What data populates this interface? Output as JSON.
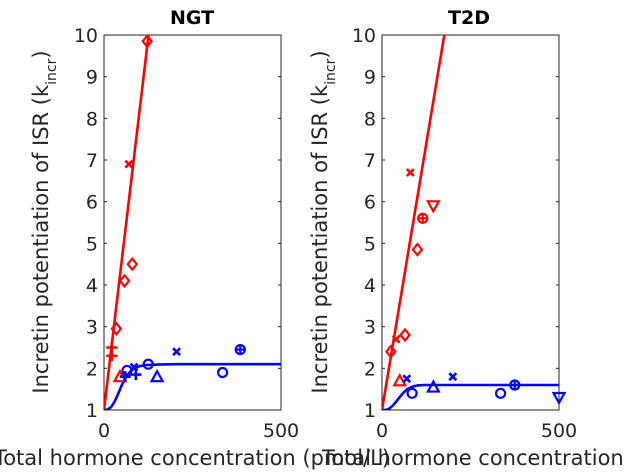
{
  "chart_data": [
    {
      "type": "scatter",
      "title": "NGT",
      "xlabel": "Total hormone concentration (pmol/L)",
      "ylabel": "Incretin potentiation of ISR (k",
      "ylabel_sub": "incr",
      "ylabel_end": ")",
      "xlim": [
        0,
        500
      ],
      "ylim": [
        1,
        10
      ],
      "xticks": [
        0,
        500
      ],
      "yticks": [
        1,
        2,
        3,
        4,
        5,
        6,
        7,
        8,
        9,
        10
      ],
      "grid": false,
      "series": [
        {
          "color": "#ff0000",
          "fit_line": {
            "x": [
              0,
              130
            ],
            "y": [
              1,
              10.3
            ]
          },
          "points": [
            {
              "x": 22,
              "y": 2.5,
              "marker": "plus"
            },
            {
              "x": 22,
              "y": 2.3,
              "marker": "plus"
            },
            {
              "x": 35,
              "y": 2.95,
              "marker": "diamond"
            },
            {
              "x": 45,
              "y": 1.8,
              "marker": "triangle"
            },
            {
              "x": 58,
              "y": 4.1,
              "marker": "diamond"
            },
            {
              "x": 70,
              "y": 6.9,
              "marker": "x"
            },
            {
              "x": 80,
              "y": 4.5,
              "marker": "diamond"
            },
            {
              "x": 122,
              "y": 9.85,
              "marker": "diamond"
            }
          ]
        },
        {
          "color": "#0000ff",
          "fit_line": {
            "x": [
              0,
              10,
              20,
              30,
              40,
              50,
              60,
              70,
              80,
              90,
              100,
              120,
              150,
              200,
              300,
              500
            ],
            "y": [
              1,
              1.01,
              1.07,
              1.2,
              1.39,
              1.59,
              1.76,
              1.88,
              1.97,
              2.02,
              2.05,
              2.08,
              2.09,
              2.1,
              2.1,
              2.1
            ]
          },
          "points": [
            {
              "x": 60,
              "y": 1.8,
              "marker": "plus"
            },
            {
              "x": 65,
              "y": 1.95,
              "marker": "circle"
            },
            {
              "x": 85,
              "y": 2.03,
              "marker": "x"
            },
            {
              "x": 90,
              "y": 1.85,
              "marker": "plus"
            },
            {
              "x": 125,
              "y": 2.1,
              "marker": "circle"
            },
            {
              "x": 150,
              "y": 1.8,
              "marker": "triangle"
            },
            {
              "x": 205,
              "y": 2.4,
              "marker": "x"
            },
            {
              "x": 335,
              "y": 1.9,
              "marker": "circle"
            },
            {
              "x": 385,
              "y": 2.45,
              "marker": "circle-plus"
            }
          ]
        }
      ]
    },
    {
      "type": "scatter",
      "title": "T2D",
      "xlabel": "Total hormone concentration (pmol/L)",
      "ylabel": "Incretin potentiation of ISR (k",
      "ylabel_sub": "incr",
      "ylabel_end": ")",
      "xlim": [
        0,
        500
      ],
      "ylim": [
        1,
        10
      ],
      "xticks": [
        0,
        500
      ],
      "yticks": [
        1,
        2,
        3,
        4,
        5,
        6,
        7,
        8,
        9,
        10
      ],
      "grid": false,
      "series": [
        {
          "color": "#ff0000",
          "fit_line": {
            "x": [
              0,
              180
            ],
            "y": [
              1,
              10.2
            ]
          },
          "points": [
            {
              "x": 25,
              "y": 2.4,
              "marker": "diamond"
            },
            {
              "x": 40,
              "y": 2.7,
              "marker": "x"
            },
            {
              "x": 50,
              "y": 1.7,
              "marker": "triangle"
            },
            {
              "x": 65,
              "y": 2.8,
              "marker": "diamond"
            },
            {
              "x": 80,
              "y": 6.7,
              "marker": "x"
            },
            {
              "x": 100,
              "y": 4.85,
              "marker": "diamond"
            },
            {
              "x": 115,
              "y": 5.6,
              "marker": "circle-plus"
            },
            {
              "x": 145,
              "y": 5.9,
              "marker": "triangle-down"
            }
          ]
        },
        {
          "color": "#0000ff",
          "fit_line": {
            "x": [
              0,
              10,
              20,
              30,
              40,
              50,
              60,
              70,
              80,
              90,
              100,
              120,
              150,
              200,
              300,
              500
            ],
            "y": [
              1,
              1.0,
              1.03,
              1.1,
              1.2,
              1.31,
              1.41,
              1.49,
              1.54,
              1.57,
              1.59,
              1.6,
              1.6,
              1.6,
              1.6,
              1.6
            ]
          },
          "points": [
            {
              "x": 70,
              "y": 1.75,
              "marker": "x"
            },
            {
              "x": 85,
              "y": 1.4,
              "marker": "circle"
            },
            {
              "x": 145,
              "y": 1.55,
              "marker": "triangle"
            },
            {
              "x": 200,
              "y": 1.8,
              "marker": "x"
            },
            {
              "x": 335,
              "y": 1.4,
              "marker": "circle"
            },
            {
              "x": 375,
              "y": 1.6,
              "marker": "circle-plus"
            },
            {
              "x": 500,
              "y": 1.3,
              "marker": "triangle-down"
            }
          ]
        }
      ]
    }
  ]
}
